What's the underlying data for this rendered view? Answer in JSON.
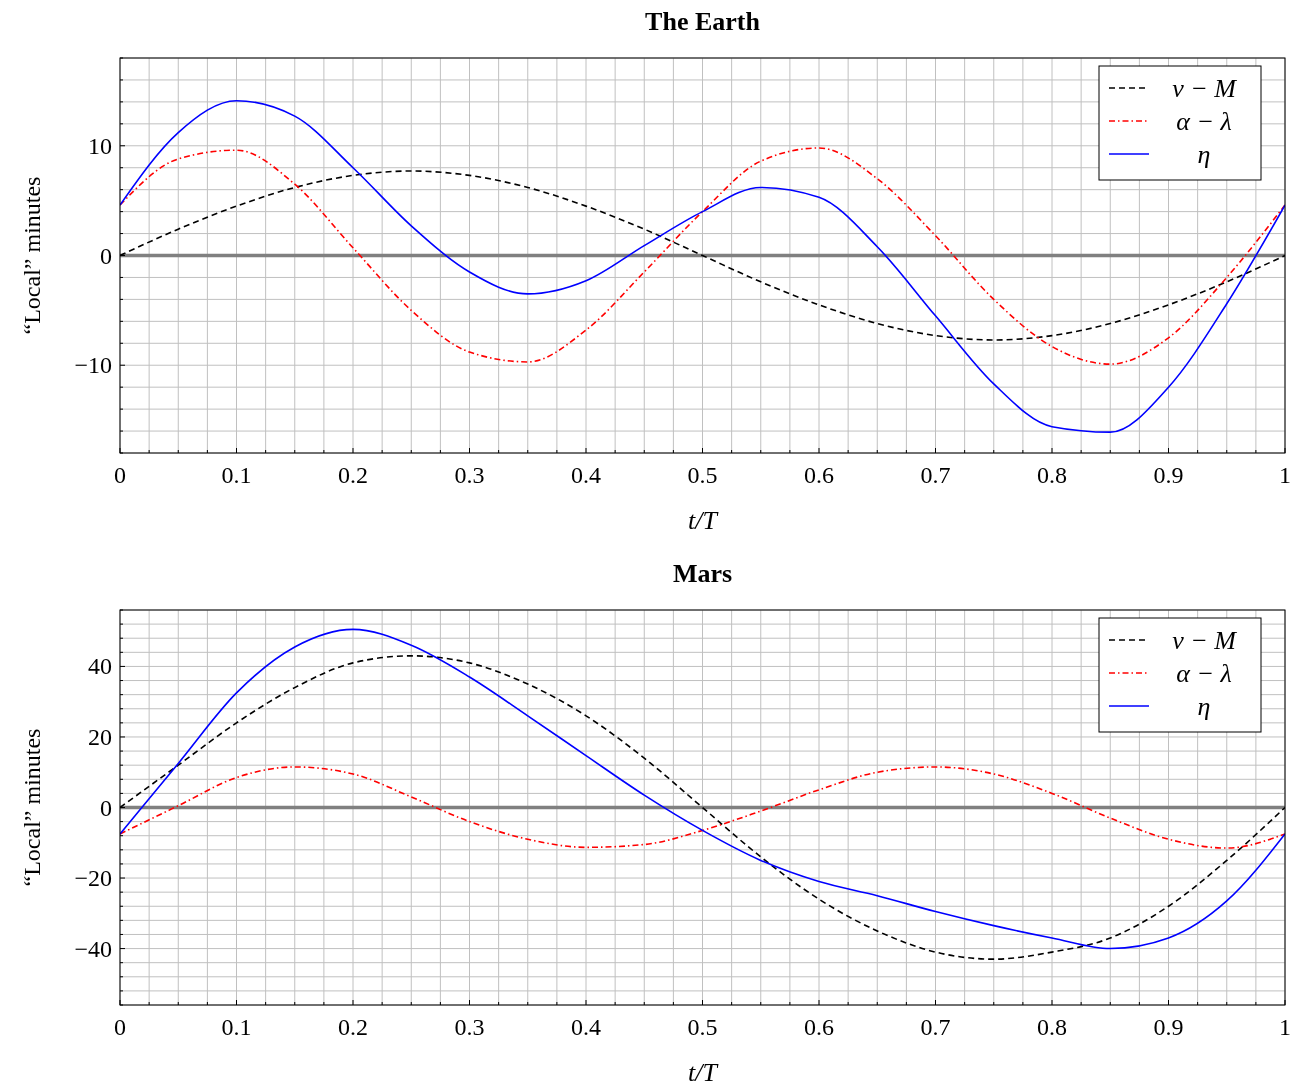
{
  "chart_data": [
    {
      "type": "line",
      "title": "The Earth",
      "xlabel": "t/T",
      "ylabel": "“Local” minutes",
      "xlim": [
        0,
        1
      ],
      "ylim": [
        -18,
        18
      ],
      "xticks": [
        0,
        {
          "value": 0.025,
          "label": null
        },
        {
          "value": 0.05,
          "label": null
        },
        {
          "value": 0.075,
          "label": null
        },
        0.1,
        {
          "value": 0.125,
          "label": null
        },
        {
          "value": 0.15,
          "label": null
        },
        {
          "value": 0.175,
          "label": null
        },
        0.2,
        {
          "value": 0.225,
          "label": null
        },
        {
          "value": 0.25,
          "label": null
        },
        {
          "value": 0.275,
          "label": null
        },
        0.3,
        {
          "value": 0.325,
          "label": null
        },
        {
          "value": 0.35,
          "label": null
        },
        {
          "value": 0.375,
          "label": null
        },
        0.4,
        {
          "value": 0.425,
          "label": null
        },
        {
          "value": 0.45,
          "label": null
        },
        {
          "value": 0.475,
          "label": null
        },
        0.5,
        {
          "value": 0.525,
          "label": null
        },
        {
          "value": 0.55,
          "label": null
        },
        {
          "value": 0.575,
          "label": null
        },
        0.6,
        {
          "value": 0.625,
          "label": null
        },
        {
          "value": 0.65,
          "label": null
        },
        {
          "value": 0.675,
          "label": null
        },
        0.7,
        {
          "value": 0.725,
          "label": null
        },
        {
          "value": 0.75,
          "label": null
        },
        {
          "value": 0.775,
          "label": null
        },
        0.8,
        {
          "value": 0.825,
          "label": null
        },
        {
          "value": 0.85,
          "label": null
        },
        {
          "value": 0.875,
          "label": null
        },
        0.9,
        {
          "value": 0.925,
          "label": null
        },
        {
          "value": 0.95,
          "label": null
        },
        {
          "value": 0.975,
          "label": null
        },
        1
      ],
      "yticks": [
        {
          "value": -18,
          "label": null
        },
        {
          "value": -16,
          "label": null
        },
        {
          "value": -14,
          "label": null
        },
        {
          "value": -12,
          "label": null
        },
        {
          "value": -10,
          "label": "−10"
        },
        {
          "value": -8,
          "label": null
        },
        {
          "value": -6,
          "label": null
        },
        {
          "value": -4,
          "label": null
        },
        {
          "value": -2,
          "label": null
        },
        0,
        {
          "value": 2,
          "label": null
        },
        {
          "value": 4,
          "label": null
        },
        {
          "value": 6,
          "label": null
        },
        {
          "value": 8,
          "label": null
        },
        10,
        {
          "value": 12,
          "label": null
        },
        {
          "value": 14,
          "label": null
        },
        {
          "value": 16,
          "label": null
        },
        {
          "value": 18,
          "label": null
        }
      ],
      "grid": true,
      "legend": "top right",
      "ref_lines": [
        {
          "axis": "y",
          "value": 0,
          "color": "#808080"
        }
      ],
      "x": [
        0,
        0.05,
        0.1,
        0.15,
        0.2,
        0.25,
        0.3,
        0.35,
        0.4,
        0.45,
        0.5,
        0.55,
        0.6,
        0.65,
        0.7,
        0.75,
        0.8,
        0.85,
        0.9,
        0.95,
        1
      ],
      "series": [
        {
          "name": "ν − M",
          "color": "#000000",
          "line_style": "dashed",
          "values": [
            0,
            2.4,
            4.5,
            6.2,
            7.3,
            7.7,
            7.3,
            6.2,
            4.5,
            2.4,
            0,
            -2.4,
            -4.5,
            -6.2,
            -7.3,
            -7.7,
            -7.3,
            -6.2,
            -4.5,
            -2.4,
            0
          ]
        },
        {
          "name": "α − λ",
          "color": "#ff0000",
          "line_style": "dotted",
          "values": [
            4.6,
            8.8,
            9.6,
            6.5,
            0.7,
            -5.0,
            -8.8,
            -9.7,
            -6.8,
            -1.5,
            4.0,
            8.6,
            9.8,
            7.0,
            1.8,
            -4.0,
            -8.3,
            -9.9,
            -7.5,
            -2.0,
            4.6
          ]
        },
        {
          "name": "η",
          "color": "#0000ff",
          "line_style": "solid",
          "values": [
            4.6,
            11.2,
            14.1,
            12.7,
            8.0,
            2.7,
            -1.5,
            -3.5,
            -2.3,
            0.9,
            4.0,
            6.2,
            5.3,
            0.8,
            -5.5,
            -11.7,
            -15.6,
            -16.1,
            -12.0,
            -4.4,
            4.6
          ]
        }
      ]
    },
    {
      "type": "line",
      "title": "Mars",
      "xlabel": "t/T",
      "ylabel": "“Local” minutes",
      "xlim": [
        0,
        1
      ],
      "ylim": [
        -56,
        56
      ],
      "xticks": [
        0,
        {
          "value": 0.025,
          "label": null
        },
        {
          "value": 0.05,
          "label": null
        },
        {
          "value": 0.075,
          "label": null
        },
        0.1,
        {
          "value": 0.125,
          "label": null
        },
        {
          "value": 0.15,
          "label": null
        },
        {
          "value": 0.175,
          "label": null
        },
        0.2,
        {
          "value": 0.225,
          "label": null
        },
        {
          "value": 0.25,
          "label": null
        },
        {
          "value": 0.275,
          "label": null
        },
        0.3,
        {
          "value": 0.325,
          "label": null
        },
        {
          "value": 0.35,
          "label": null
        },
        {
          "value": 0.375,
          "label": null
        },
        0.4,
        {
          "value": 0.425,
          "label": null
        },
        {
          "value": 0.45,
          "label": null
        },
        {
          "value": 0.475,
          "label": null
        },
        0.5,
        {
          "value": 0.525,
          "label": null
        },
        {
          "value": 0.55,
          "label": null
        },
        {
          "value": 0.575,
          "label": null
        },
        0.6,
        {
          "value": 0.625,
          "label": null
        },
        {
          "value": 0.65,
          "label": null
        },
        {
          "value": 0.675,
          "label": null
        },
        0.7,
        {
          "value": 0.725,
          "label": null
        },
        {
          "value": 0.75,
          "label": null
        },
        {
          "value": 0.775,
          "label": null
        },
        0.8,
        {
          "value": 0.825,
          "label": null
        },
        {
          "value": 0.85,
          "label": null
        },
        {
          "value": 0.875,
          "label": null
        },
        0.9,
        {
          "value": 0.925,
          "label": null
        },
        {
          "value": 0.95,
          "label": null
        },
        {
          "value": 0.975,
          "label": null
        },
        1
      ],
      "yticks": [
        {
          "value": -56,
          "label": null
        },
        {
          "value": -52,
          "label": null
        },
        {
          "value": -48,
          "label": null
        },
        {
          "value": -44,
          "label": null
        },
        {
          "value": -40,
          "label": "−40"
        },
        {
          "value": -36,
          "label": null
        },
        {
          "value": -32,
          "label": null
        },
        {
          "value": -28,
          "label": null
        },
        {
          "value": -24,
          "label": null
        },
        {
          "value": -20,
          "label": "−20"
        },
        {
          "value": -16,
          "label": null
        },
        {
          "value": -12,
          "label": null
        },
        {
          "value": -8,
          "label": null
        },
        {
          "value": -4,
          "label": null
        },
        0,
        {
          "value": 4,
          "label": null
        },
        {
          "value": 8,
          "label": null
        },
        {
          "value": 12,
          "label": null
        },
        {
          "value": 16,
          "label": null
        },
        20,
        {
          "value": 24,
          "label": null
        },
        {
          "value": 28,
          "label": null
        },
        {
          "value": 32,
          "label": null
        },
        {
          "value": 36,
          "label": null
        },
        40,
        {
          "value": 44,
          "label": null
        },
        {
          "value": 48,
          "label": null
        },
        {
          "value": 52,
          "label": null
        },
        {
          "value": 56,
          "label": null
        }
      ],
      "grid": true,
      "legend": "top right",
      "ref_lines": [
        {
          "axis": "y",
          "value": 0,
          "color": "#808080"
        }
      ],
      "x": [
        0,
        0.05,
        0.1,
        0.15,
        0.2,
        0.25,
        0.3,
        0.35,
        0.4,
        0.45,
        0.5,
        0.55,
        0.6,
        0.65,
        0.7,
        0.75,
        0.8,
        0.85,
        0.9,
        0.95,
        1
      ],
      "series": [
        {
          "name": "ν − M",
          "color": "#000000",
          "line_style": "dashed",
          "values": [
            0,
            12,
            24,
            34,
            41,
            43,
            41,
            35,
            26,
            14,
            0,
            -14,
            -26,
            -35,
            -41,
            -43,
            -41,
            -37,
            -28,
            -15,
            0
          ]
        },
        {
          "name": "α − λ",
          "color": "#ff0000",
          "line_style": "dotted",
          "values": [
            -7.5,
            0.5,
            8.5,
            11.5,
            9.5,
            3,
            -4,
            -9,
            -11.3,
            -10.5,
            -6.5,
            -1,
            5,
            10,
            11.5,
            9.5,
            4,
            -3,
            -9,
            -11.5,
            -7.5
          ]
        },
        {
          "name": "η",
          "color": "#0000ff",
          "line_style": "solid",
          "values": [
            -7.5,
            12.5,
            32.5,
            45.5,
            50.5,
            46,
            37,
            26,
            14.7,
            3.5,
            -6.5,
            -15,
            -21,
            -25,
            -29.5,
            -33.5,
            -37,
            -40,
            -37,
            -26.5,
            -7.5
          ]
        }
      ]
    }
  ]
}
